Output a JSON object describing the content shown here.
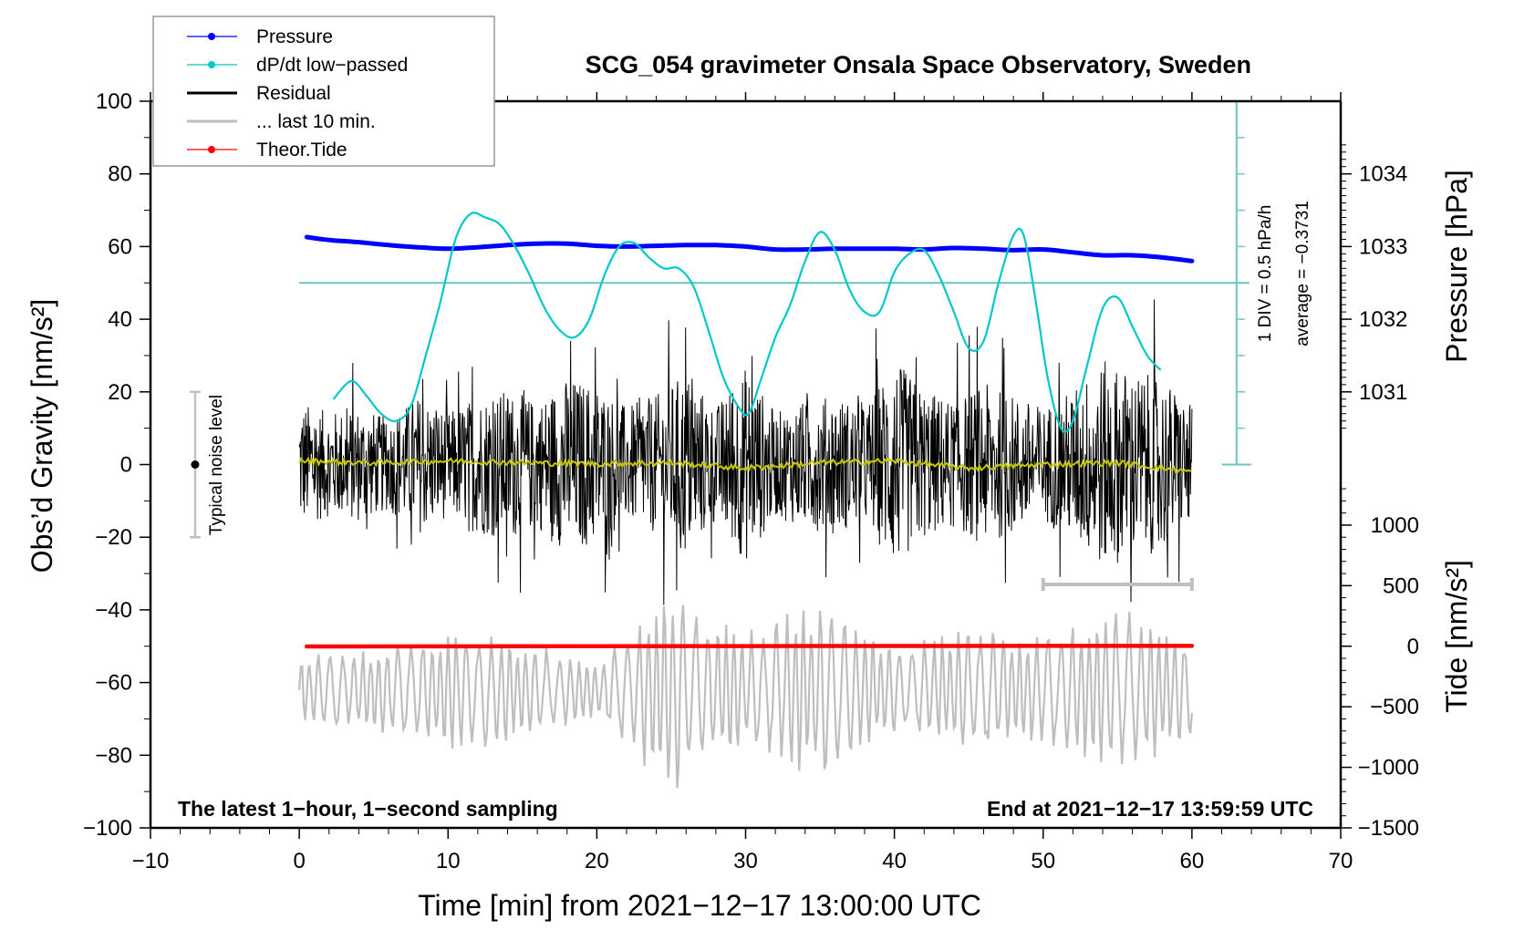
{
  "chart_data": {
    "type": "line",
    "title": "SCG_054 gravimeter Onsala Space Observatory, Sweden",
    "xlabel": "Time [min] from 2021−12−17 13:00:00 UTC",
    "ylabel_left": "Obs’d Gravity [nm/s²]",
    "ylabel_right_top": "Pressure [hPa]",
    "ylabel_right_bottom": "Tide [nm/s²]",
    "xlim": [
      -10,
      70
    ],
    "ylim": [
      -100,
      100
    ],
    "x_ticks": [
      -10,
      0,
      10,
      20,
      30,
      40,
      50,
      60,
      70
    ],
    "x_tick_labels": [
      "−10",
      "0",
      "10",
      "20",
      "30",
      "40",
      "50",
      "60",
      "70"
    ],
    "y_ticks": [
      100,
      80,
      60,
      40,
      20,
      0,
      -20,
      -40,
      -60,
      -80,
      -100
    ],
    "y_tick_labels": [
      "100",
      "80",
      "60",
      "40",
      "20",
      "0",
      "−20",
      "−40",
      "−60",
      "−80",
      "−100"
    ],
    "pressure_axis": {
      "ticks": [
        1034,
        1033,
        1032,
        1031
      ],
      "tick_labels": [
        "1034",
        "1033",
        "1032",
        "1031"
      ],
      "gravity_at_1034": 80,
      "hpa_per_gravity_unit": 0.05
    },
    "tide_axis": {
      "ticks": [
        1000,
        500,
        0,
        -500,
        -1000,
        -1500
      ],
      "tick_labels": [
        "1000",
        "500",
        "0",
        "−500",
        "−1000",
        "−1500"
      ],
      "gravity_at_0": -50,
      "tide_per_gravity_unit": 30
    },
    "dpdt_scale": {
      "label": "1 DIV = 0.5 hPa/h",
      "average_label": "average = −0.3731",
      "zero_gravity": 50,
      "x_position": 63,
      "range_gravity": [
        0,
        100
      ],
      "div_gravity": 10
    },
    "legend": {
      "placement": "top-left",
      "entries": [
        {
          "label": "Pressure",
          "color": "#0000ff",
          "marker": "dot"
        },
        {
          "label": "dP/dt low−passed",
          "color": "#00c8c8",
          "marker": "dot"
        },
        {
          "label": "Residual",
          "color": "#000000",
          "marker": "line"
        },
        {
          "label": "... last 10 min.",
          "color": "#bebebe",
          "marker": "line"
        },
        {
          "label": "Theor.Tide",
          "color": "#ff0000",
          "marker": "dot"
        }
      ]
    },
    "noise_bar": {
      "label": "Typical noise level",
      "x": -7,
      "center": 0,
      "low": -20,
      "high": 20
    },
    "last10_bar": {
      "x_start": 50,
      "x_end": 60,
      "y": -33
    },
    "annotations": {
      "bottom_left": "The latest 1−hour, 1−second sampling",
      "bottom_right": "End at 2021−12−17 13:59:59 UTC"
    },
    "series": [
      {
        "name": "Pressure",
        "unit": "hPa",
        "color": "#0000ff",
        "x": [
          0.5,
          2,
          4,
          6,
          8,
          10,
          12,
          14,
          16,
          18,
          20,
          22,
          24,
          26,
          28,
          30,
          32,
          34,
          36,
          38,
          40,
          42,
          44,
          46,
          48,
          50,
          52,
          54,
          56,
          58,
          60
        ],
        "values": [
          1033.13,
          1033.09,
          1033.06,
          1033.02,
          1032.99,
          1032.97,
          1032.99,
          1033.02,
          1033.04,
          1033.04,
          1033.01,
          1033.0,
          1033.01,
          1033.02,
          1033.02,
          1033.0,
          1032.96,
          1032.96,
          1032.97,
          1032.97,
          1032.97,
          1032.96,
          1032.98,
          1032.97,
          1032.95,
          1032.96,
          1032.92,
          1032.88,
          1032.88,
          1032.85,
          1032.8
        ]
      },
      {
        "name": "dP/dt low-passed",
        "unit": "gravity-axis units (1 DIV = 0.5 hPa/h, zero at 50)",
        "color": "#00c8c8",
        "x": [
          2.3,
          3.5,
          4.5,
          5.5,
          6.5,
          7.5,
          8.5,
          9.5,
          10.5,
          11.5,
          12.5,
          13.5,
          14.5,
          15.5,
          16.5,
          17.5,
          18.5,
          19.5,
          20.5,
          21.5,
          22.5,
          23.5,
          24.5,
          25.5,
          26.5,
          27.5,
          28.5,
          29.5,
          30.2,
          31,
          32,
          33,
          34,
          35,
          36,
          37,
          38,
          39,
          40,
          41,
          42,
          43,
          44,
          45,
          46,
          47,
          48,
          48.7,
          49.5,
          50.3,
          51.2,
          52,
          53,
          54,
          55,
          56,
          57,
          57.9
        ],
        "values": [
          18,
          23,
          19,
          14,
          12,
          16,
          30,
          45,
          62,
          69,
          68,
          66,
          60,
          52,
          43,
          37,
          35,
          40,
          52,
          60,
          61,
          57,
          54,
          54,
          49,
          37,
          24,
          16,
          14,
          23,
          35,
          44,
          56,
          64,
          59,
          48,
          42,
          42,
          53,
          58,
          59,
          52,
          42,
          32,
          34,
          50,
          63,
          63,
          45,
          24,
          10,
          12,
          28,
          43,
          46,
          38,
          30,
          26
        ]
      },
      {
        "name": "Residual",
        "unit": "nm/s²",
        "color": "#000000",
        "x_range": [
          0,
          60
        ],
        "sampling": "1 second",
        "envelope_x": [
          0,
          2,
          4,
          6,
          8,
          10,
          12,
          14,
          16,
          18,
          20,
          22,
          24,
          26,
          28,
          30,
          32,
          34,
          36,
          38,
          40,
          42,
          44,
          46,
          48,
          50,
          52,
          54,
          56,
          58,
          60
        ],
        "envelope_amplitude": [
          22,
          18,
          20,
          16,
          24,
          18,
          24,
          26,
          22,
          30,
          28,
          20,
          24,
          32,
          20,
          34,
          18,
          22,
          24,
          20,
          36,
          26,
          22,
          28,
          24,
          20,
          26,
          36,
          32,
          30,
          20
        ]
      },
      {
        "name": "Smoothed residual",
        "unit": "nm/s²",
        "color": "#c8c800",
        "x": [
          0,
          5,
          10,
          15,
          20,
          25,
          30,
          35,
          40,
          45,
          50,
          55,
          60
        ],
        "values": [
          1,
          0.5,
          1,
          0.5,
          0.2,
          0.5,
          -1,
          0.5,
          1,
          -1,
          0,
          0.5,
          -2
        ]
      },
      {
        "name": "... last 10 min.",
        "unit": "gravity-axis units, stretched over 0-60",
        "color": "#bebebe",
        "x_range": [
          0,
          60
        ],
        "center": -62,
        "envelope_x": [
          0,
          5,
          10,
          15,
          20,
          25,
          30,
          35,
          40,
          45,
          50,
          55,
          60
        ],
        "envelope_amplitude": [
          10,
          12,
          18,
          14,
          8,
          30,
          16,
          26,
          12,
          18,
          16,
          24,
          14
        ]
      },
      {
        "name": "Theor.Tide",
        "unit": "nm/s²",
        "color": "#ff0000",
        "x": [
          0.5,
          10,
          20,
          30,
          40,
          50,
          60
        ],
        "values": [
          -2,
          -1,
          0,
          1,
          2,
          3,
          3
        ]
      }
    ]
  }
}
